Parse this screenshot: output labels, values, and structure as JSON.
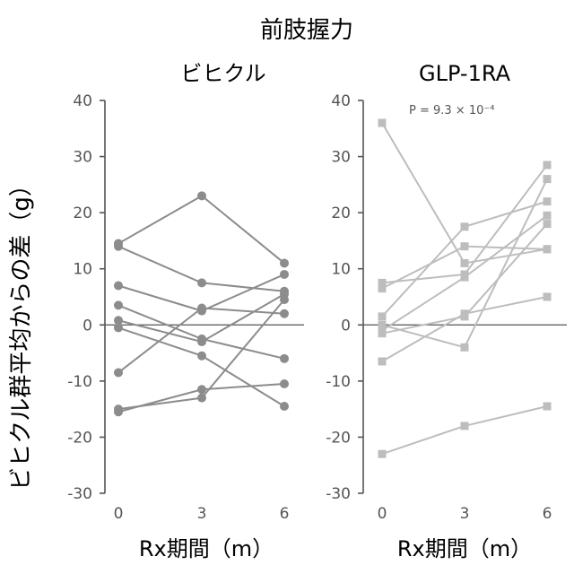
{
  "title": "前肢握力",
  "ylabel": "ビヒクル群平均からの差（g）",
  "chart_data": [
    {
      "type": "line",
      "title": "ビヒクル",
      "annotation": "",
      "xlabel": "Rx期間（m）",
      "x": [
        0,
        3,
        6
      ],
      "x_ticks": [
        "0",
        "3",
        "6"
      ],
      "ylim": [
        -30,
        40
      ],
      "y_ticks": [
        -30,
        -20,
        -10,
        0,
        10,
        20,
        30,
        40
      ],
      "marker": "circle",
      "color": "#8c8c8c",
      "series": [
        {
          "values": [
            14.5,
            23,
            11
          ]
        },
        {
          "values": [
            14,
            7.5,
            6
          ]
        },
        {
          "values": [
            7,
            2.5,
            9
          ]
        },
        {
          "values": [
            3.5,
            -2.5,
            -6
          ]
        },
        {
          "values": [
            0.8,
            -3,
            5.5
          ]
        },
        {
          "values": [
            -0.5,
            -5.5,
            -14.5
          ]
        },
        {
          "values": [
            -8.5,
            3,
            2
          ]
        },
        {
          "values": [
            -15,
            -13,
            4.5
          ]
        },
        {
          "values": [
            -15.5,
            -11.5,
            -10.5
          ]
        }
      ]
    },
    {
      "type": "line",
      "title": "GLP-1RA",
      "annotation": "P = 9.3 × 10⁻⁴",
      "xlabel": "Rx期間（m）",
      "x": [
        0,
        3,
        6
      ],
      "x_ticks": [
        "0",
        "3",
        "6"
      ],
      "ylim": [
        -30,
        40
      ],
      "y_ticks": [
        -30,
        -20,
        -10,
        0,
        10,
        20,
        30,
        40
      ],
      "marker": "square",
      "color": "#bdbdbd",
      "series": [
        {
          "values": [
            36,
            11,
            13.5
          ]
        },
        {
          "values": [
            7.5,
            9,
            28.5
          ]
        },
        {
          "values": [
            6.5,
            14,
            13.5
          ]
        },
        {
          "values": [
            1.5,
            17.5,
            22
          ]
        },
        {
          "values": [
            0,
            -4,
            26
          ]
        },
        {
          "values": [
            -1,
            8.5,
            19.5
          ]
        },
        {
          "values": [
            -1.5,
            1.5,
            18
          ]
        },
        {
          "values": [
            -6.5,
            2,
            5
          ]
        },
        {
          "values": [
            -23,
            -18,
            -14.5
          ]
        }
      ]
    }
  ]
}
